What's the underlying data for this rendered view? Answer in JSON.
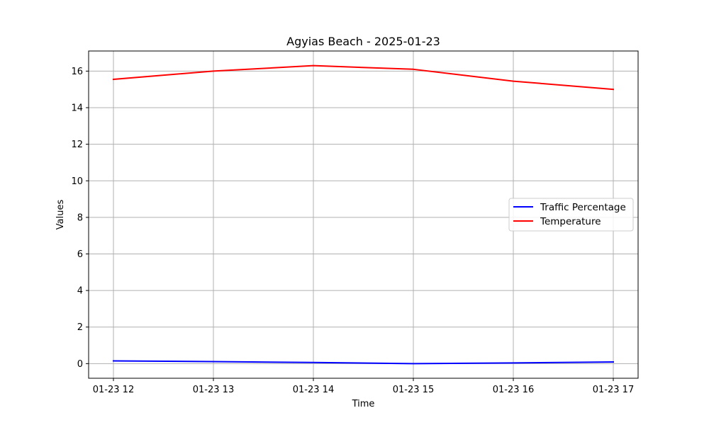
{
  "chart_data": {
    "type": "line",
    "title": "Agyias Beach - 2025-01-23",
    "xlabel": "Time",
    "ylabel": "Values",
    "x": [
      "01-23 12",
      "01-23 13",
      "01-23 14",
      "01-23 15",
      "01-23 16",
      "01-23 17"
    ],
    "ylim": [
      -0.8,
      17.1
    ],
    "yticks": [
      "0",
      "2",
      "4",
      "6",
      "8",
      "10",
      "12",
      "14",
      "16"
    ],
    "grid": true,
    "legend_position": "center-right",
    "series": [
      {
        "name": "Traffic Percentage",
        "color": "#0000ff",
        "values": [
          0.15,
          0.11,
          0.06,
          0.0,
          0.04,
          0.09
        ]
      },
      {
        "name": "Temperature",
        "color": "#ff0000",
        "values": [
          15.55,
          16.0,
          16.3,
          16.1,
          15.45,
          15.0
        ]
      }
    ]
  }
}
